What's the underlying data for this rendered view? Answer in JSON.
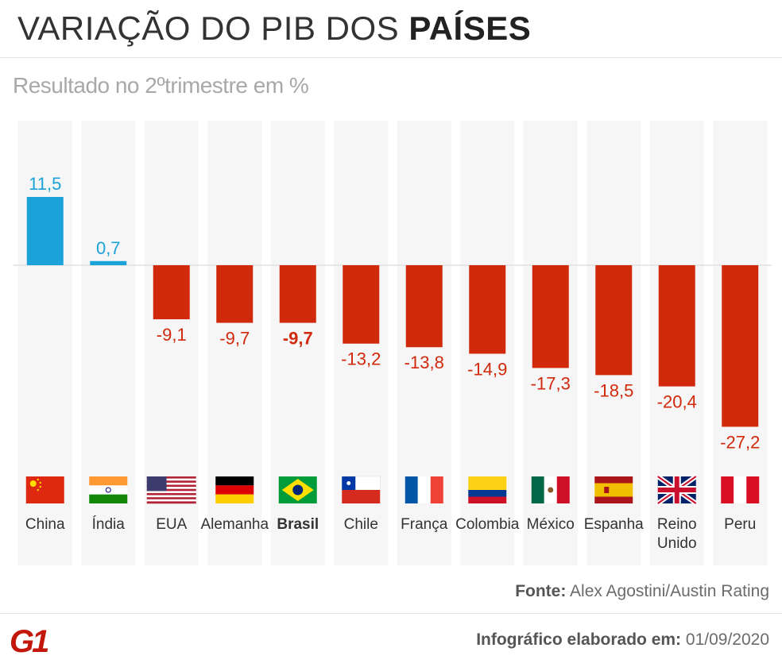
{
  "header": {
    "title_regular": "VARIAÇÃO DO PIB DOS ",
    "title_bold": "PAÍSES",
    "subtitle": "Resultado no 2ºtrimestre em %"
  },
  "chart_data": {
    "type": "bar",
    "title": "VARIAÇÃO DO PIB DOS PAÍSES",
    "subtitle": "Resultado no 2ºtrimestre em %",
    "categories": [
      "China",
      "Índia",
      "EUA",
      "Alemanha",
      "Brasil",
      "Chile",
      "França",
      "Colombia",
      "México",
      "Espanha",
      "Reino Unido",
      "Peru"
    ],
    "values": [
      11.5,
      0.7,
      -9.1,
      -9.7,
      -9.7,
      -13.2,
      -13.8,
      -14.9,
      -17.3,
      -18.5,
      -20.4,
      -27.2
    ],
    "value_labels": [
      "11,5",
      "0,7",
      "-9,1",
      "-9,7",
      "-9,7",
      "-13,2",
      "-13,8",
      "-14,9",
      "-17,3",
      "-18,5",
      "-20,4",
      "-27,2"
    ],
    "label_lines": [
      [
        "China"
      ],
      [
        "Índia"
      ],
      [
        "EUA"
      ],
      [
        "Alemanha"
      ],
      [
        "Brasil"
      ],
      [
        "Chile"
      ],
      [
        "França"
      ],
      [
        "Colombia"
      ],
      [
        "México"
      ],
      [
        "Espanha"
      ],
      [
        "Reino",
        "Unido"
      ],
      [
        "Peru"
      ]
    ],
    "highlight": "Brasil",
    "colors": {
      "positive": "#1aa2d9",
      "negative": "#d0290b",
      "column_bg": "#f6f6f6",
      "zero_line": "#e0e0e0"
    },
    "flags": [
      "china-flag",
      "india-flag",
      "usa-flag",
      "germany-flag",
      "brazil-flag",
      "chile-flag",
      "france-flag",
      "colombia-flag",
      "mexico-flag",
      "spain-flag",
      "uk-flag",
      "peru-flag"
    ]
  },
  "footer": {
    "source_label": "Fonte:",
    "source_text": " Alex Agostini/Austin Rating",
    "logo": "G1",
    "credit_label": "Infográfico elaborado em:",
    "credit_date": " 01/09/2020"
  }
}
